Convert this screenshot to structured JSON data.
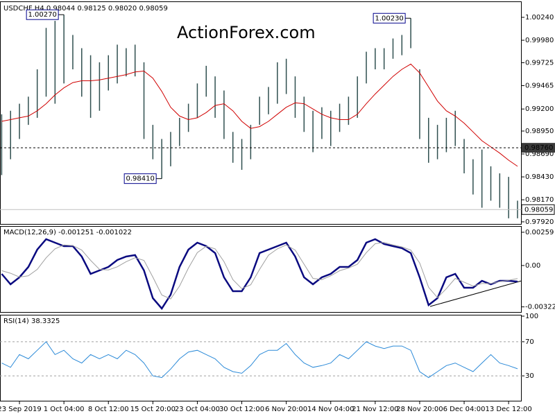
{
  "chart_data": [
    {
      "type": "range",
      "title": "USDCHF,H4  0.98044 0.98125 0.98020 0.98059",
      "watermark": "ActionForex.com",
      "color": "#2f4f4f",
      "high": [
        0.9914,
        0.9918,
        0.9926,
        0.9934,
        0.9965,
        1.0012,
        1.002,
        1.0027,
        1.0004,
        0.9989,
        0.9981,
        0.9973,
        0.9981,
        0.9993,
        0.9989,
        0.9993,
        0.9973,
        0.9902,
        0.9886,
        0.9894,
        0.991,
        0.9926,
        0.9949,
        0.9969,
        0.9957,
        0.9941,
        0.9894,
        0.9886,
        0.9902,
        0.9934,
        0.9945,
        0.9973,
        0.9977,
        0.9957,
        0.9934,
        0.9918,
        0.9922,
        0.9918,
        0.9926,
        0.9934,
        0.9957,
        0.9985,
        0.9989,
        0.9989,
        1.0,
        1.0004,
        1.0023,
        0.9965,
        0.991,
        0.9902,
        0.991,
        0.9918,
        0.9886,
        0.9863,
        0.9874,
        0.9855,
        0.9847,
        0.9843,
        0.9816
      ],
      "low": [
        0.9845,
        0.9863,
        0.9886,
        0.9902,
        0.991,
        0.9934,
        0.9926,
        0.9949,
        0.9965,
        0.9934,
        0.991,
        0.9918,
        0.9941,
        0.9949,
        0.9957,
        0.9957,
        0.9886,
        0.9863,
        0.9841,
        0.9855,
        0.9878,
        0.9894,
        0.991,
        0.9934,
        0.991,
        0.9886,
        0.9859,
        0.9851,
        0.9863,
        0.9902,
        0.9914,
        0.9926,
        0.9937,
        0.991,
        0.9894,
        0.9871,
        0.9886,
        0.9878,
        0.9894,
        0.9902,
        0.991,
        0.9949,
        0.9965,
        0.9965,
        0.9977,
        0.9981,
        0.9989,
        0.9886,
        0.9859,
        0.9863,
        0.9871,
        0.9878,
        0.9847,
        0.9823,
        0.9808,
        0.9816,
        0.9808,
        0.9796,
        0.9796
      ],
      "ma": {
        "color": "#d00000",
        "values": [
          0.9906,
          0.9908,
          0.991,
          0.9912,
          0.9918,
          0.9926,
          0.9936,
          0.9944,
          0.995,
          0.9952,
          0.9952,
          0.9953,
          0.9955,
          0.9957,
          0.9959,
          0.9962,
          0.9963,
          0.9955,
          0.994,
          0.9922,
          0.9912,
          0.9908,
          0.991,
          0.9916,
          0.9924,
          0.9926,
          0.9918,
          0.9906,
          0.9898,
          0.99,
          0.9906,
          0.9914,
          0.9922,
          0.9927,
          0.9926,
          0.992,
          0.9914,
          0.991,
          0.9908,
          0.9908,
          0.9914,
          0.9926,
          0.9937,
          0.9947,
          0.9957,
          0.9965,
          0.9971,
          0.9961,
          0.9945,
          0.9929,
          0.9918,
          0.9912,
          0.9904,
          0.9894,
          0.9884,
          0.9877,
          0.987,
          0.9862,
          0.9855
        ]
      },
      "ylim": [
        0.97896,
        1.00413
      ],
      "yticks": [
        {
          "value": 1.0024,
          "label": "1.00240"
        },
        {
          "value": 0.9998,
          "label": "0.99980"
        },
        0.99725,
        0.99465,
        {
          "value": 0.992,
          "label": "0.99200"
        },
        {
          "value": 0.9895,
          "label": "0.98950"
        },
        {
          "value": 0.9869,
          "label": "0.98690"
        },
        {
          "value": 0.9843,
          "label": "0.98430"
        },
        {
          "value": 0.9817,
          "label": "0.98170"
        },
        {
          "value": 0.9792,
          "label": "0.97920"
        }
      ],
      "levels": [
        {
          "value": 0.9876,
          "label": "0.98760"
        }
      ],
      "last_price": 0.98059,
      "annotations": [
        {
          "value": 1.0027,
          "label": "1.00270"
        },
        {
          "value": 0.9841,
          "label": "0.98410"
        },
        {
          "value": 1.0023,
          "label": "1.00230"
        }
      ],
      "grid": false
    },
    {
      "type": "line",
      "title": "MACD(12,26,9) -0.001251 -0.001022",
      "series": [
        {
          "color": "#0a0a80",
          "width": 2.5,
          "values": [
            -0.00065,
            -0.00146,
            -0.00092,
            -0.00011,
            0.00124,
            0.00205,
            0.00178,
            0.00151,
            0.00151,
            0.0007,
            -0.00065,
            -0.00038,
            -0.00011,
            0.00043,
            0.0007,
            0.00081,
            -0.00038,
            -0.00254,
            -0.00335,
            -0.00227,
            -0.00011,
            0.00124,
            0.00178,
            0.00151,
            0.00097,
            -0.00092,
            -0.002,
            -0.002,
            -0.00092,
            0.00097,
            0.00124,
            0.00151,
            0.00178,
            0.0007,
            -0.00092,
            -0.00146,
            -0.00092,
            -0.00065,
            -0.00011,
            -0.00011,
            0.00043,
            0.00178,
            0.00205,
            0.00167,
            0.00151,
            0.00135,
            0.00097,
            -0.00092,
            -0.00308,
            -0.00254,
            -0.00092,
            -0.00065,
            -0.00173,
            -0.00173,
            -0.00119,
            -0.00146,
            -0.00119,
            -0.00119,
            -0.00125
          ]
        },
        {
          "color": "#a0a0a0",
          "width": 1,
          "values": [
            -0.0004,
            -0.0006,
            -0.0009,
            -0.0008,
            -0.0003,
            0.0006,
            0.0013,
            0.0016,
            0.00155,
            0.0012,
            0.0004,
            -0.0003,
            -0.00035,
            -0.0001,
            0.0003,
            0.0006,
            0.0004,
            -0.0009,
            -0.0023,
            -0.0026,
            -0.0016,
            -0.0002,
            0.001,
            0.0015,
            0.0013,
            0.0003,
            -0.0011,
            -0.0018,
            -0.0015,
            -0.0003,
            0.0008,
            0.0013,
            0.0016,
            0.0012,
            0.0001,
            -0.001,
            -0.0011,
            -0.0008,
            -0.0004,
            -0.0002,
            0.0001,
            0.001,
            0.0017,
            0.0018,
            0.0016,
            0.00145,
            0.0012,
            0.0002,
            -0.0017,
            -0.0025,
            -0.0018,
            -0.001,
            -0.0013,
            -0.0016,
            -0.0014,
            -0.0014,
            -0.00125,
            -0.00115,
            -0.00102
          ]
        }
      ],
      "ylim": [
        -0.00362,
        0.00302
      ],
      "yticks": [
        0.00259,
        {
          "value": 0,
          "label": "0.00"
        },
        -0.003221
      ],
      "grid": false
    },
    {
      "type": "line",
      "title": "RSI(14) 38.3325",
      "categories": [
        null,
        null,
        "23 Sep 2019",
        null,
        null,
        null,
        null,
        "1 Oct 04:00",
        null,
        null,
        null,
        null,
        "8 Oct 12:00",
        null,
        null,
        null,
        null,
        "15 Oct 20:00",
        null,
        null,
        null,
        null,
        "23 Oct 04:00",
        null,
        null,
        null,
        null,
        "30 Oct 12:00",
        null,
        null,
        null,
        null,
        "6 Nov 20:00",
        null,
        null,
        null,
        null,
        "14 Nov 04:00",
        null,
        null,
        null,
        null,
        "21 Nov 12:00",
        null,
        null,
        null,
        null,
        "28 Nov 20:00",
        null,
        null,
        null,
        null,
        "6 Dec 04:00",
        null,
        null,
        null,
        null,
        "13 Dec 12:00",
        null
      ],
      "series": [
        {
          "color": "#2b8ad8",
          "width": 1,
          "values": [
            45,
            40,
            55,
            50,
            60,
            70,
            55,
            60,
            50,
            45,
            55,
            50,
            55,
            50,
            60,
            55,
            45,
            30,
            28,
            38,
            50,
            58,
            60,
            55,
            50,
            40,
            35,
            33,
            42,
            55,
            60,
            60,
            68,
            55,
            45,
            40,
            42,
            45,
            55,
            50,
            60,
            70,
            65,
            62,
            65,
            65,
            60,
            35,
            28,
            35,
            42,
            45,
            40,
            35,
            45,
            55,
            45,
            42,
            38.3325
          ]
        }
      ],
      "ylim": [
        0,
        100
      ],
      "yticks": [
        100,
        70,
        30
      ],
      "grid": true
    }
  ]
}
